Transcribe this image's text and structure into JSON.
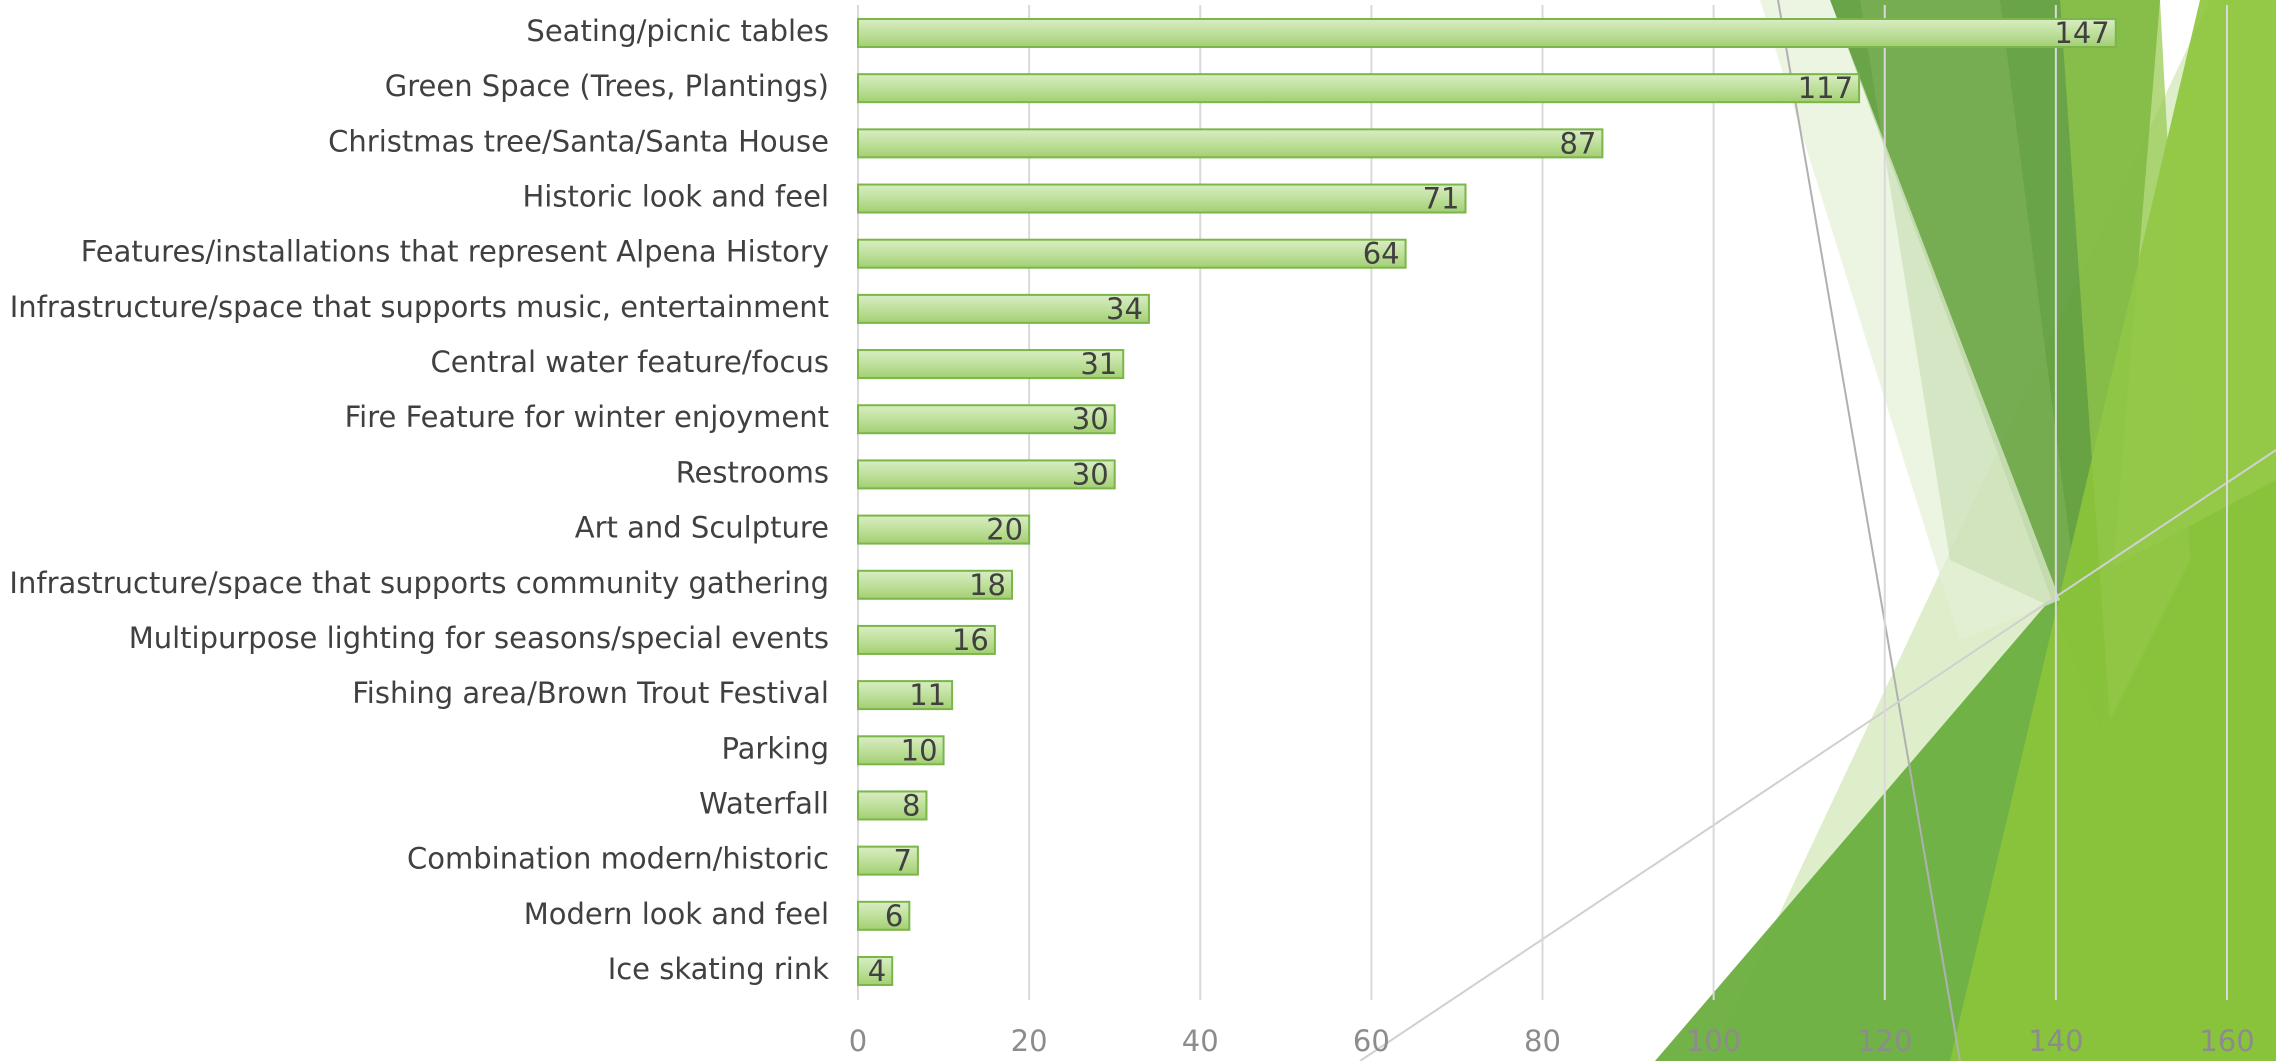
{
  "chart_data": {
    "type": "bar",
    "orientation": "horizontal",
    "categories": [
      "Seating/picnic tables",
      "Green Space (Trees, Plantings)",
      "Christmas tree/Santa/Santa House",
      "Historic look and feel",
      "Features/installations that represent Alpena History",
      "Infrastructure/space that supports music, entertainment",
      "Central water feature/focus",
      "Fire Feature for winter enjoyment",
      "Restrooms",
      "Art and Sculpture",
      "Infrastructure/space that supports community gathering",
      "Multipurpose lighting for seasons/special events",
      "Fishing area/Brown Trout Festival",
      "Parking",
      "Waterfall",
      "Combination modern/historic",
      "Modern look and feel",
      "Ice skating rink"
    ],
    "values": [
      147,
      117,
      87,
      71,
      64,
      34,
      31,
      30,
      30,
      20,
      18,
      16,
      11,
      10,
      8,
      7,
      6,
      4
    ],
    "color": "#a9d37a",
    "xlim": [
      0,
      160
    ],
    "xticks": [
      0,
      20,
      40,
      60,
      80,
      100,
      120,
      140,
      160
    ],
    "grid": true
  }
}
